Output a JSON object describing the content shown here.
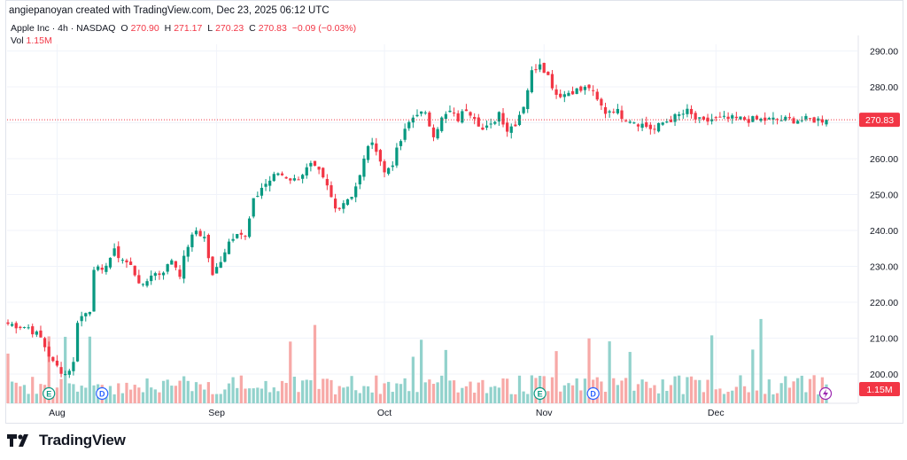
{
  "header": {
    "author_line": "angiepanoyan created with TradingView.com, Dec 23, 2025 06:12 UTC"
  },
  "legend": {
    "symbol": "Apple Inc · 4h · NASDAQ",
    "o_label": "O",
    "o_value": "270.90",
    "h_label": "H",
    "h_value": "271.17",
    "l_label": "L",
    "l_value": "270.23",
    "c_label": "C",
    "c_value": "270.83",
    "change": "−0.09 (−0.03%)",
    "vol_label": "Vol",
    "vol_value": "1.15M"
  },
  "footer": {
    "brand": "TradingView"
  },
  "colors": {
    "up": "#089981",
    "down": "#f23645",
    "vol_up": "#92d2cc",
    "vol_down": "#f7a9a7",
    "grid": "#f0f3fa",
    "axis_text": "#131722",
    "price_line": "#f23645"
  },
  "chart_data": {
    "type": "candlestick",
    "title": "Apple Inc · 4h · NASDAQ",
    "ylim": [
      193,
      296
    ],
    "y_ticks": [
      "290.00",
      "280.00",
      "270.00",
      "260.00",
      "250.00",
      "240.00",
      "230.00",
      "220.00",
      "210.00",
      "200.00"
    ],
    "y_tick_values": [
      290,
      280,
      270,
      260,
      250,
      240,
      230,
      220,
      210,
      200
    ],
    "x_labels": [
      "Aug",
      "Sep",
      "Oct",
      "Nov",
      "Dec"
    ],
    "x_label_bar_index": [
      12,
      51,
      92,
      131,
      173
    ],
    "last_price": "270.83",
    "last_volume": "1.15M",
    "event_markers": [
      {
        "label": "E",
        "bar_index": 10
      },
      {
        "label": "D",
        "bar_index": 23
      },
      {
        "label": "E",
        "bar_index": 130
      },
      {
        "label": "D",
        "bar_index": 143
      }
    ],
    "series_anchors": {
      "description": "approximate closing prices at bar indices",
      "index": [
        0,
        5,
        8,
        11,
        14,
        16,
        17,
        20,
        21,
        23,
        24,
        26,
        28,
        30,
        32,
        33,
        35,
        37,
        39,
        40,
        42,
        44,
        46,
        48,
        50,
        52,
        54,
        56,
        58,
        60,
        62,
        64,
        66,
        68,
        70,
        72,
        74,
        76,
        78,
        80,
        82,
        84,
        86,
        88,
        90,
        92,
        94,
        96,
        98,
        100,
        102,
        104,
        106,
        108,
        110,
        112,
        114,
        116,
        118,
        120,
        122,
        124,
        126,
        128,
        130,
        132,
        134,
        136,
        138,
        140,
        142,
        144,
        146,
        148,
        150,
        152,
        154,
        156,
        158,
        160,
        162,
        164,
        166,
        168,
        170,
        172,
        174,
        176,
        178,
        180,
        182,
        184,
        186,
        188,
        190,
        192,
        194,
        196,
        198,
        200
      ],
      "close": [
        214,
        213,
        210,
        203,
        200,
        203,
        215,
        218,
        230,
        228,
        231,
        234,
        232,
        230,
        226,
        224,
        228,
        228,
        230,
        232,
        228,
        236,
        240,
        238,
        227,
        232,
        237,
        240,
        238,
        248,
        252,
        254,
        256,
        255,
        254,
        256,
        258,
        256,
        252,
        246,
        248,
        250,
        255,
        264,
        263,
        256,
        259,
        265,
        270,
        273,
        272,
        267,
        271,
        273,
        271,
        274,
        272,
        268,
        269,
        273,
        268,
        270,
        275,
        284,
        287,
        283,
        278,
        278,
        279,
        279,
        280,
        276,
        273,
        274,
        272,
        271,
        270,
        269,
        268,
        270,
        271,
        272,
        273,
        271,
        270,
        271,
        271,
        271,
        271,
        271,
        270.8,
        270.8,
        270.8,
        270.8,
        270.8,
        270.8,
        270.8,
        270.8,
        270.8,
        270.8
      ]
    },
    "n_bars": 201
  }
}
